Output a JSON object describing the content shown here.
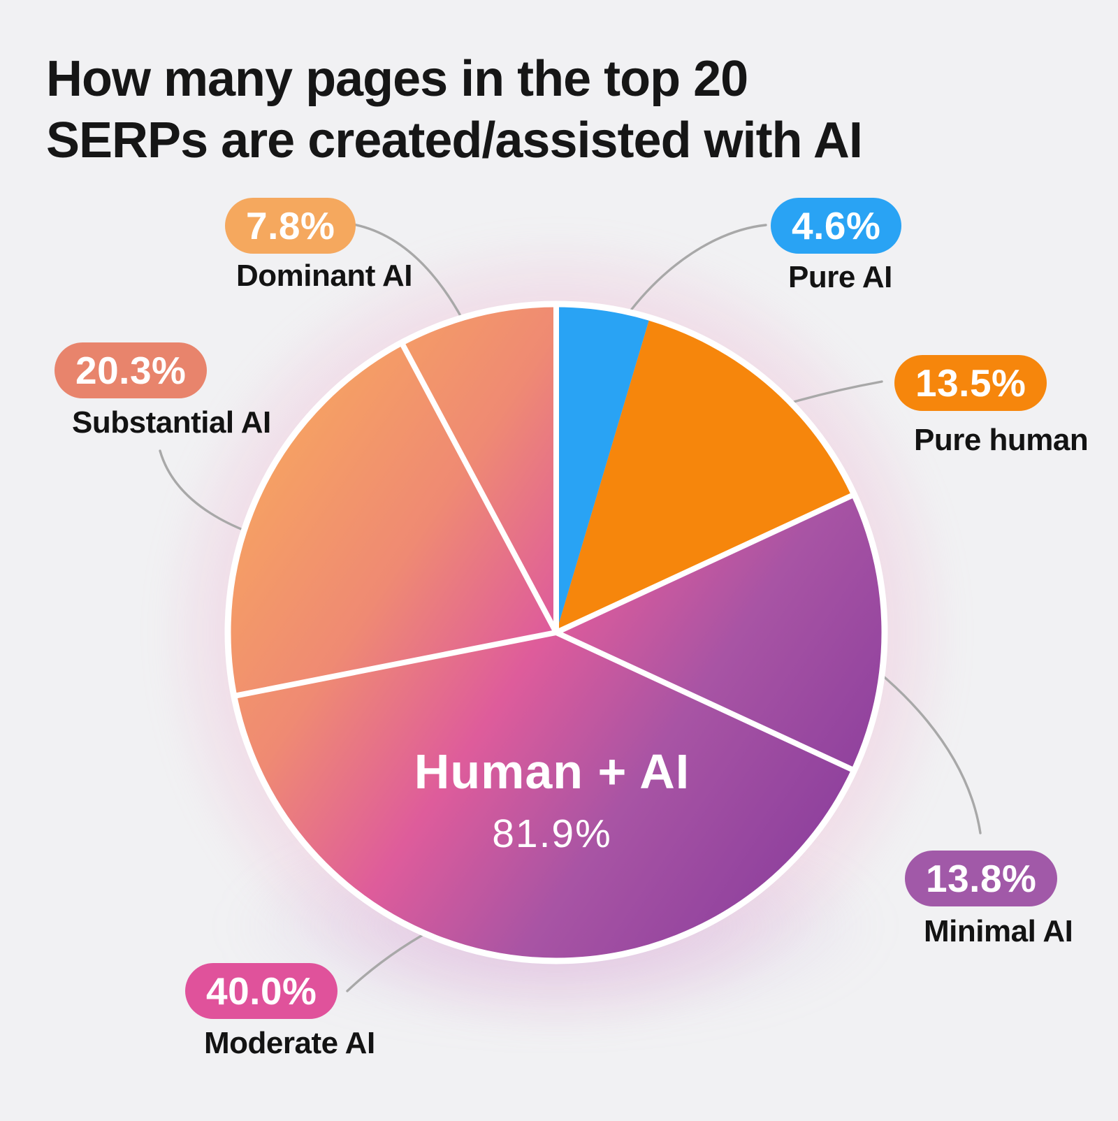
{
  "title": {
    "line1": "How many pages in the top 20",
    "line2": "SERPs are created/assisted with AI"
  },
  "colors": {
    "background": "#F1F1F3",
    "divider": "#FFFFFF",
    "connector": "#A8A8A8",
    "title_text": "#161616",
    "label_text": "#131313",
    "badge_text": "#FFFFFF",
    "human_ai_gradient_stops": [
      "#F9AD5B",
      "#EF8A73",
      "#DE5C9B",
      "#A854A4",
      "#8A3D9C"
    ]
  },
  "chart_data": {
    "type": "pie",
    "title": "How many pages in the top 20 SERPs are created/assisted with AI",
    "direction": "clockwise",
    "start_angle_deg": 0,
    "legend": "callout-badges-around-pie",
    "slices": [
      {
        "id": "pure-ai",
        "label": "Pure AI",
        "value": 4.6,
        "value_label": "4.6%",
        "color": "#29A3F4",
        "fill": "solid",
        "in_center_group": false
      },
      {
        "id": "pure-human",
        "label": "Pure human",
        "value": 13.5,
        "value_label": "13.5%",
        "color": "#F6860C",
        "fill": "solid",
        "in_center_group": false
      },
      {
        "id": "minimal-ai",
        "label": "Minimal AI",
        "value": 13.8,
        "value_label": "13.8%",
        "color": "#A159A8",
        "fill": "gradient",
        "in_center_group": true
      },
      {
        "id": "moderate-ai",
        "label": "Moderate AI",
        "value": 40.0,
        "value_label": "40.0%",
        "color": "#E0529B",
        "fill": "gradient",
        "in_center_group": true
      },
      {
        "id": "substantial-ai",
        "label": "Substantial AI",
        "value": 20.3,
        "value_label": "20.3%",
        "color": "#E8846C",
        "fill": "gradient",
        "in_center_group": true
      },
      {
        "id": "dominant-ai",
        "label": "Dominant AI",
        "value": 7.8,
        "value_label": "7.8%",
        "color": "#F5A85E",
        "fill": "gradient",
        "in_center_group": true
      }
    ],
    "center_group": {
      "label": "Human + AI",
      "value": 81.9,
      "value_label": "81.9%",
      "members": [
        "Minimal AI",
        "Moderate AI",
        "Substantial AI",
        "Dominant AI"
      ]
    }
  }
}
